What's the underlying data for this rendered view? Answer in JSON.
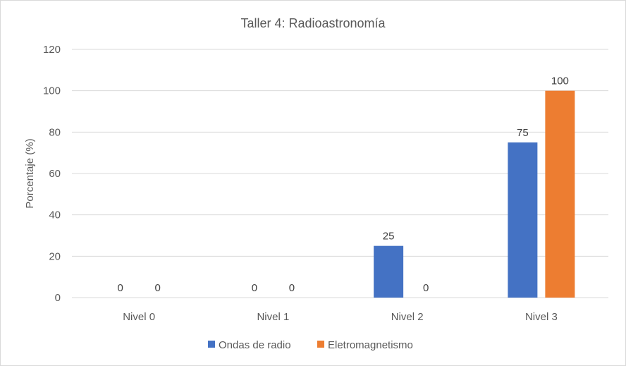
{
  "chart_data": {
    "type": "bar",
    "title": "Taller 4: Radioastronomía",
    "xlabel": "",
    "ylabel": "Porcentaje (%)",
    "categories": [
      "Nivel 0",
      "Nivel 1",
      "Nivel 2",
      "Nivel 3"
    ],
    "series": [
      {
        "name": "Ondas de radio",
        "color": "#4472c4",
        "values": [
          0,
          0,
          25,
          75
        ]
      },
      {
        "name": "Eletromagnetismo",
        "color": "#ed7d31",
        "values": [
          0,
          0,
          0,
          100
        ]
      }
    ],
    "ylim": [
      0,
      120
    ],
    "yticks": [
      0,
      20,
      40,
      60,
      80,
      100,
      120
    ],
    "grid": true,
    "legend_position": "bottom",
    "data_labels": true
  }
}
